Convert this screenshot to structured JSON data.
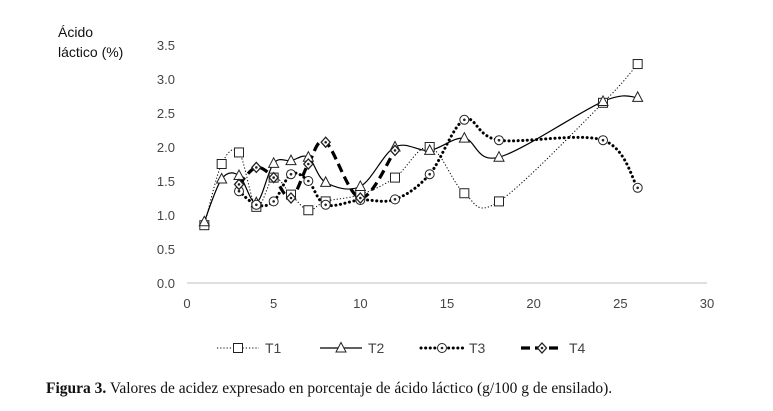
{
  "chart_data": {
    "type": "line",
    "ylabel_lines": [
      "Ácido",
      "láctico (%)"
    ],
    "xlabel": "",
    "xlim": [
      0,
      30
    ],
    "ylim": [
      0,
      3.5
    ],
    "xticks": [
      0,
      5,
      10,
      15,
      20,
      25,
      30
    ],
    "yticks": [
      0.0,
      0.5,
      1.0,
      1.5,
      2.0,
      2.5,
      3.0,
      3.5
    ],
    "xtick_labels": [
      "0",
      "5",
      "10",
      "15",
      "20",
      "25",
      "30"
    ],
    "ytick_labels": [
      "0.0",
      "0.5",
      "1.0",
      "1.5",
      "2.0",
      "2.5",
      "3.0",
      "3.5"
    ],
    "grid": false,
    "legend_position": "bottom",
    "series": [
      {
        "name": "T1",
        "marker": "square",
        "line_style": "dotted-thin",
        "color": "#000000",
        "x": [
          1,
          2,
          3,
          4,
          5,
          6,
          7,
          8,
          10,
          12,
          14,
          16,
          18,
          24,
          26
        ],
        "y": [
          0.85,
          1.75,
          1.92,
          1.12,
          1.55,
          1.3,
          1.07,
          1.2,
          1.3,
          1.55,
          2.0,
          1.32,
          1.2,
          2.65,
          3.22
        ]
      },
      {
        "name": "T2",
        "marker": "triangle",
        "line_style": "solid",
        "color": "#000000",
        "x": [
          1,
          2,
          3,
          4,
          5,
          6,
          7,
          8,
          10,
          12,
          14,
          16,
          18,
          24,
          26
        ],
        "y": [
          0.9,
          1.53,
          1.58,
          1.18,
          1.76,
          1.8,
          1.85,
          1.48,
          1.42,
          2.0,
          1.95,
          2.13,
          1.85,
          2.67,
          2.73
        ]
      },
      {
        "name": "T3",
        "marker": "circle-dot",
        "line_style": "dotted-bold",
        "color": "#000000",
        "x": [
          3,
          4,
          5,
          6,
          7,
          8,
          10,
          12,
          14,
          16,
          18,
          24,
          26
        ],
        "y": [
          1.35,
          1.15,
          1.2,
          1.6,
          1.5,
          1.15,
          1.22,
          1.23,
          1.6,
          2.4,
          2.1,
          2.1,
          1.4
        ]
      },
      {
        "name": "T4",
        "marker": "diamond",
        "line_style": "dashed-bold",
        "color": "#000000",
        "x": [
          3,
          4,
          5,
          6,
          7,
          8,
          10,
          12
        ],
        "y": [
          1.45,
          1.7,
          1.55,
          1.25,
          1.75,
          2.07,
          1.25,
          1.95
        ]
      }
    ]
  },
  "caption": {
    "bold": "Figura 3.",
    "text": " Valores de acidez expresado en porcentaje de ácido láctico (g/100 g de ensilado)."
  }
}
